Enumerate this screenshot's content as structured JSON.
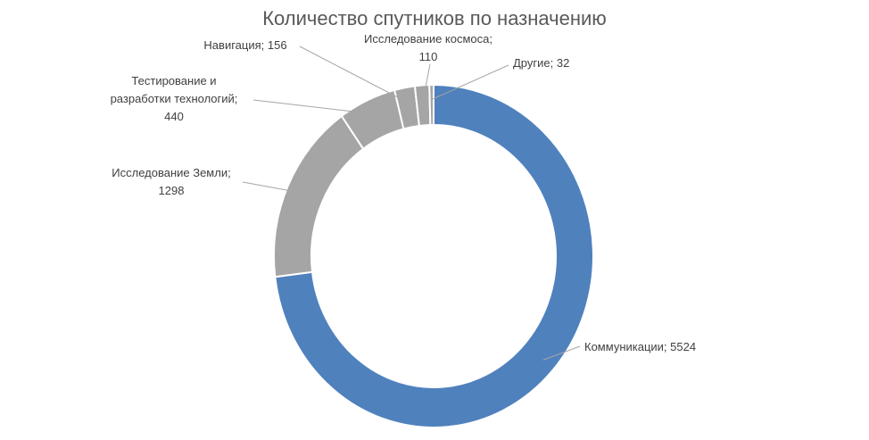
{
  "chart_data": {
    "type": "doughnut",
    "title": "Количество спутников по назначению",
    "values": [
      5524,
      1298,
      440,
      156,
      110,
      32
    ],
    "value_labels": [
      [
        "Коммуникации; 5524"
      ],
      [
        "Исследование Земли;",
        "1298"
      ],
      [
        "Тестирование и",
        "разработки технологий;",
        "440"
      ],
      [
        "Навигация; 156"
      ],
      [
        "Исследование космоса;",
        "110"
      ],
      [
        "Другие; 32"
      ]
    ],
    "colors": [
      "#4f81bd",
      "#a5a5a5",
      "#a5a5a5",
      "#a5a5a5",
      "#a5a5a5",
      "#a5a5a5"
    ]
  }
}
